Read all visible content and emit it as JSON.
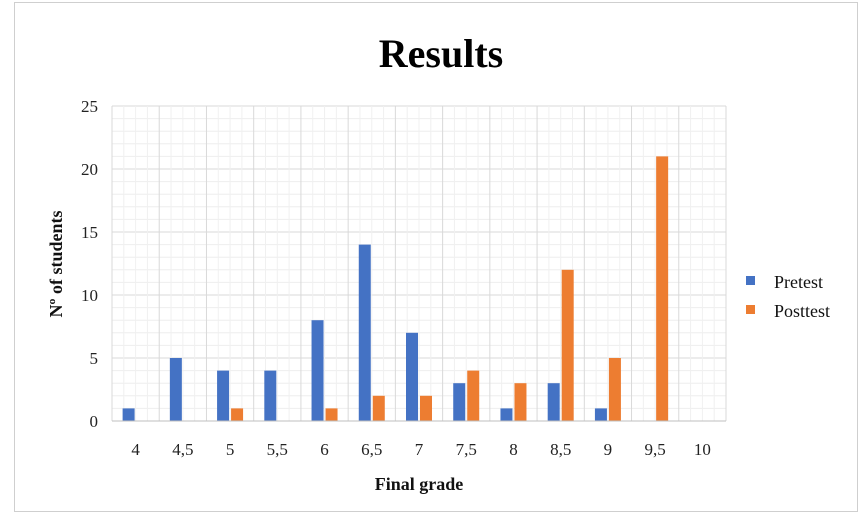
{
  "chart_data": {
    "type": "bar",
    "title": "Results",
    "xlabel": "Final grade",
    "ylabel": "Nº of students",
    "categories": [
      "4",
      "4,5",
      "5",
      "5,5",
      "6",
      "6,5",
      "7",
      "7,5",
      "8",
      "8,5",
      "9",
      "9,5",
      "10"
    ],
    "series": [
      {
        "name": "Pretest",
        "color": "#4472c4",
        "values": [
          1,
          5,
          4,
          4,
          8,
          14,
          7,
          3,
          1,
          3,
          1,
          0,
          0
        ]
      },
      {
        "name": "Posttest",
        "color": "#ed7d31",
        "values": [
          0,
          0,
          1,
          0,
          1,
          2,
          2,
          4,
          3,
          12,
          5,
          21,
          0
        ]
      }
    ],
    "ylim": [
      0,
      25
    ],
    "yticks": [
      0,
      5,
      10,
      15,
      20,
      25
    ],
    "grid": true,
    "legend_position": "right"
  }
}
